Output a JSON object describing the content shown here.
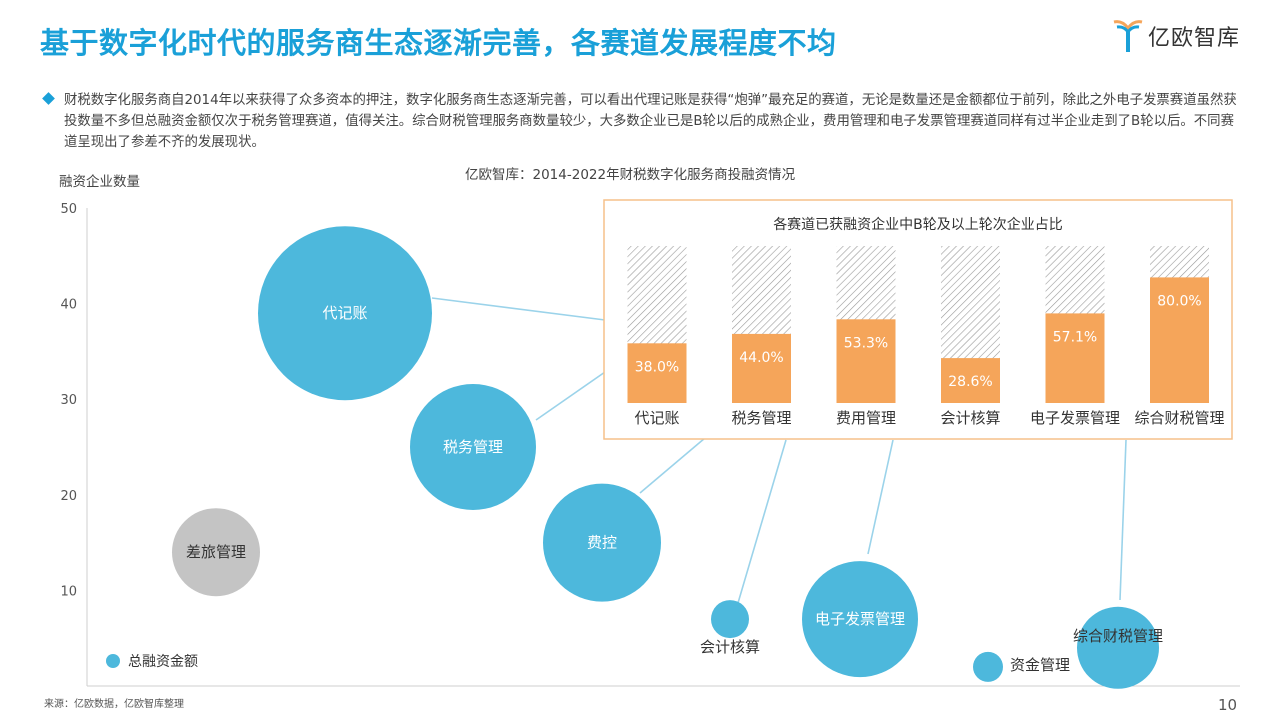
{
  "header": {
    "title": "基于数字化时代的服务商生态逐渐完善，各赛道发展程度不均",
    "logo_text": "亿欧智库"
  },
  "summary": "财税数字化服务商自2014年以来获得了众多资本的押注，数字化服务商生态逐渐完善，可以看出代理记账是获得“炮弹”最充足的赛道，无论是数量还是金额都位于前列，除此之外电子发票赛道虽然获投数量不多但总融资金额仅次于税务管理赛道，值得关注。综合财税管理服务商数量较少，大多数企业已是B轮以后的成熟企业，费用管理和电子发票管理赛道同样有过半企业走到了B轮以后。不同赛道呈现出了参差不齐的发展现状。",
  "footer": {
    "source": "来源：亿欧数据，亿欧智库整理",
    "page_number": "10"
  },
  "chart_data": [
    {
      "type": "bubble",
      "title": "亿欧智库：2014-2022年财税数字化服务商投融资情况",
      "ylabel": "融资企业数量",
      "ylim": [
        0,
        50
      ],
      "yticks": [
        10,
        20,
        30,
        40,
        50
      ],
      "grid": false,
      "legend": {
        "label": "总融资金额",
        "placement": "bottom-left"
      },
      "colors": {
        "primary": "#4db8dc",
        "grey": "#c4c4c4"
      },
      "points": [
        {
          "label": "代记账",
          "y": 39,
          "color": "#4db8dc"
        },
        {
          "label": "税务管理",
          "y": 25,
          "color": "#4db8dc"
        },
        {
          "label": "差旅管理",
          "y": 14,
          "color": "#c4c4c4"
        },
        {
          "label": "费控",
          "y": 15,
          "color": "#4db8dc"
        },
        {
          "label": "会计核算",
          "y": 7,
          "color": "#4db8dc"
        },
        {
          "label": "电子发票管理",
          "y": 7,
          "color": "#4db8dc"
        },
        {
          "label": "资金管理",
          "y": 2,
          "color": "#4db8dc"
        },
        {
          "label": "综合财税管理",
          "y": 4,
          "color": "#4db8dc"
        }
      ]
    },
    {
      "type": "bar",
      "title": "各赛道已获融资企业中B轮及以上轮次企业占比",
      "categories": [
        "代记账",
        "税务管理",
        "费用管理",
        "会计核算",
        "电子发票管理",
        "综合财税管理"
      ],
      "values": [
        38.0,
        44.0,
        53.3,
        28.6,
        57.1,
        80.0
      ],
      "value_labels": [
        "38.0%",
        "44.0%",
        "53.3%",
        "28.6%",
        "57.1%",
        "80.0%"
      ],
      "ylim": [
        0,
        100
      ],
      "colors": {
        "bar": "#f5a55a",
        "background": "hatched-grey",
        "border": "#f5c18a"
      }
    }
  ]
}
